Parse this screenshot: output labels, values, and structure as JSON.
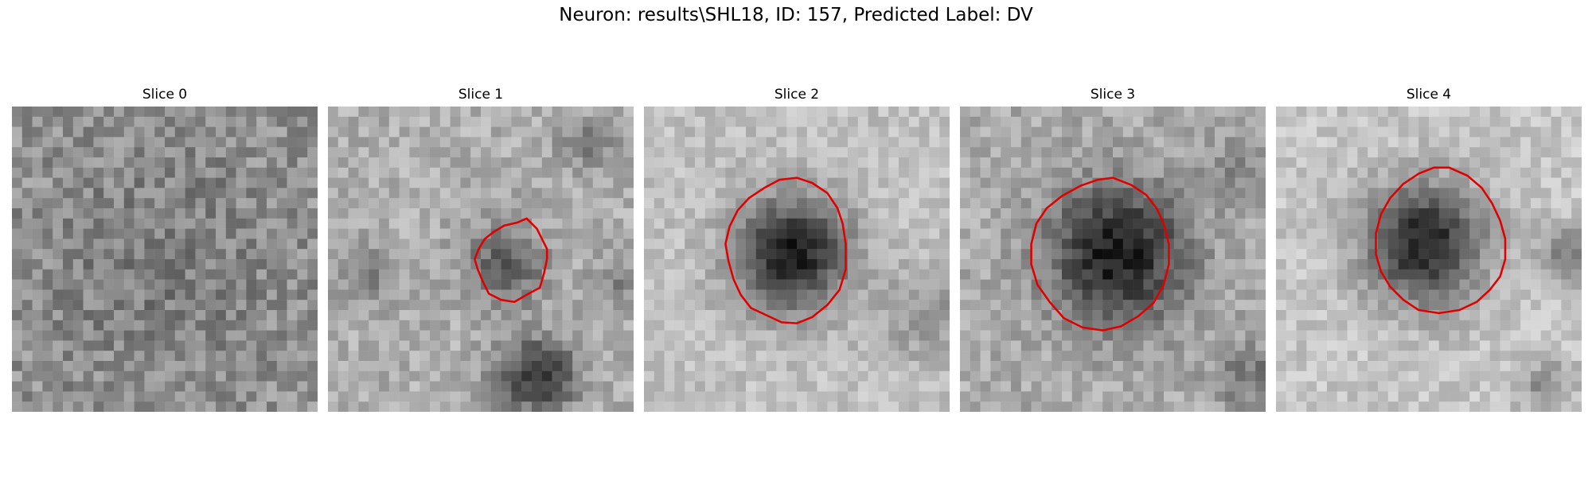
{
  "figure": {
    "title": "Neuron: results\\SHL18, ID: 157, Predicted Label: DV"
  },
  "colors": {
    "contour": "#e00000",
    "background": "#ffffff"
  },
  "panels": [
    {
      "title": "Slice 0",
      "contour": []
    },
    {
      "title": "Slice 1",
      "contour": [
        [
          19.5,
          11
        ],
        [
          20.5,
          12
        ],
        [
          21,
          13
        ],
        [
          21.5,
          14
        ],
        [
          21.5,
          15
        ],
        [
          21.2,
          16.4
        ],
        [
          20.8,
          17.8
        ],
        [
          19.5,
          18.5
        ],
        [
          18.3,
          19.2
        ],
        [
          17,
          19
        ],
        [
          15.8,
          18.4
        ],
        [
          15.2,
          17.2
        ],
        [
          14.7,
          16
        ],
        [
          14.4,
          15
        ],
        [
          14.8,
          14
        ],
        [
          15.4,
          13
        ],
        [
          16.3,
          12.3
        ],
        [
          17.3,
          11.7
        ],
        [
          18.6,
          11.4
        ]
      ]
    },
    {
      "title": "Slice 2",
      "contour": [
        [
          15,
          7
        ],
        [
          16.5,
          7.5
        ],
        [
          18,
          8.5
        ],
        [
          19,
          10
        ],
        [
          19.5,
          11.5
        ],
        [
          19.8,
          13.5
        ],
        [
          19.8,
          16
        ],
        [
          19.2,
          18
        ],
        [
          18,
          19.5
        ],
        [
          16.5,
          20.7
        ],
        [
          15,
          21.3
        ],
        [
          13.5,
          21.2
        ],
        [
          12,
          20.5
        ],
        [
          10.5,
          19.8
        ],
        [
          9.5,
          18.5
        ],
        [
          8.8,
          17
        ],
        [
          8.3,
          15.2
        ],
        [
          8,
          13.5
        ],
        [
          8.4,
          11.8
        ],
        [
          9.2,
          10.2
        ],
        [
          10.3,
          9
        ],
        [
          11.8,
          8
        ],
        [
          13.3,
          7.2
        ]
      ]
    },
    {
      "title": "Slice 3",
      "contour": [
        [
          15,
          7
        ],
        [
          16.8,
          7.7
        ],
        [
          18.3,
          8.7
        ],
        [
          19.3,
          10
        ],
        [
          20,
          11.5
        ],
        [
          20.5,
          13.5
        ],
        [
          20.5,
          15.5
        ],
        [
          20,
          17.5
        ],
        [
          19,
          19.3
        ],
        [
          17.5,
          20.6
        ],
        [
          15.8,
          21.6
        ],
        [
          14,
          22
        ],
        [
          12,
          21.7
        ],
        [
          10.2,
          20.8
        ],
        [
          8.8,
          19.2
        ],
        [
          7.6,
          17.5
        ],
        [
          7,
          15.5
        ],
        [
          7,
          13.5
        ],
        [
          7.5,
          11.5
        ],
        [
          8.5,
          10
        ],
        [
          10,
          8.8
        ],
        [
          11.8,
          7.8
        ],
        [
          13.5,
          7.2
        ]
      ]
    },
    {
      "title": "Slice 4",
      "contour": [
        [
          17,
          6
        ],
        [
          18.8,
          6.8
        ],
        [
          20.2,
          8
        ],
        [
          21.2,
          9.5
        ],
        [
          22,
          11.2
        ],
        [
          22.5,
          13
        ],
        [
          22.5,
          15
        ],
        [
          22,
          16.7
        ],
        [
          21,
          18
        ],
        [
          19.7,
          19.2
        ],
        [
          18,
          20
        ],
        [
          16,
          20.3
        ],
        [
          14,
          20
        ],
        [
          12.5,
          19
        ],
        [
          11.2,
          17.7
        ],
        [
          10.3,
          16.2
        ],
        [
          9.8,
          14.5
        ],
        [
          9.8,
          12.5
        ],
        [
          10.3,
          10.6
        ],
        [
          11.2,
          9
        ],
        [
          12.5,
          7.6
        ],
        [
          14,
          6.6
        ],
        [
          15.5,
          6
        ]
      ]
    }
  ]
}
